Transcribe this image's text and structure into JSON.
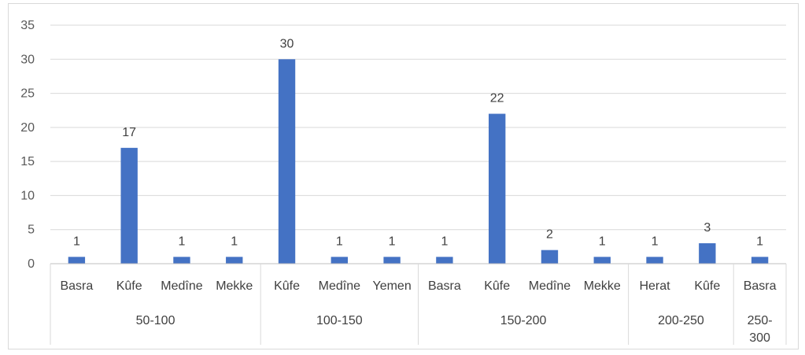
{
  "chart_data": {
    "type": "bar",
    "title": "",
    "xlabel": "",
    "ylabel": "",
    "ylim": [
      0,
      35
    ],
    "yticks": [
      0,
      5,
      10,
      15,
      20,
      25,
      30,
      35
    ],
    "grid": true,
    "legend": "none",
    "bar_color": "#4472C4",
    "groups": [
      {
        "label": "50-100",
        "label_lines": [
          "50-100"
        ],
        "categories": [
          "Basra",
          "Kûfe",
          "Medîne",
          "Mekke"
        ],
        "values": [
          1,
          17,
          1,
          1
        ]
      },
      {
        "label": "100-150",
        "label_lines": [
          "100-150"
        ],
        "categories": [
          "Kûfe",
          "Medîne",
          "Yemen"
        ],
        "values": [
          30,
          1,
          1
        ]
      },
      {
        "label": "150-200",
        "label_lines": [
          "150-200"
        ],
        "categories": [
          "Basra",
          "Kûfe",
          "Medîne",
          "Mekke"
        ],
        "values": [
          1,
          22,
          2,
          1
        ]
      },
      {
        "label": "200-250",
        "label_lines": [
          "200-250"
        ],
        "categories": [
          "Herat",
          "Kûfe"
        ],
        "values": [
          1,
          3
        ]
      },
      {
        "label": "250-300",
        "label_lines": [
          "250-",
          "300"
        ],
        "categories": [
          "Basra"
        ],
        "values": [
          1
        ]
      }
    ]
  }
}
